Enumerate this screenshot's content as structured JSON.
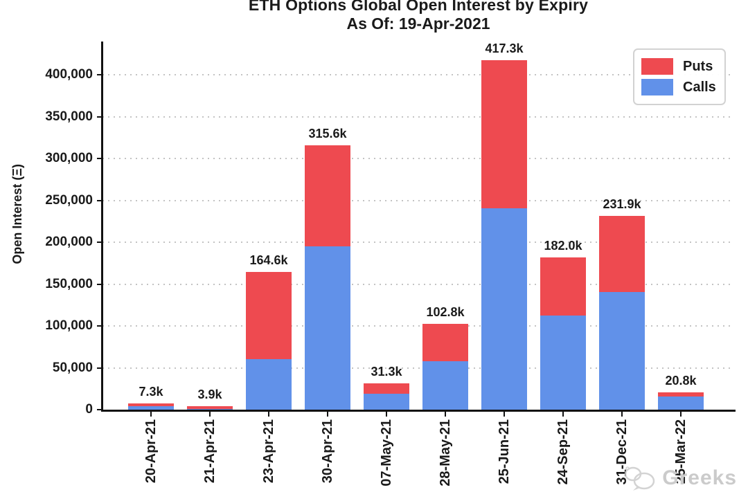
{
  "chart_data": {
    "type": "bar",
    "stacked": true,
    "title": "ETH Options Global Open Interest by Expiry",
    "subtitle": "As Of: 19-Apr-2021",
    "ylabel": "Open Interest (Ξ)",
    "xlabel": "",
    "categories": [
      "20-Apr-21",
      "21-Apr-21",
      "23-Apr-21",
      "30-Apr-21",
      "07-May-21",
      "28-May-21",
      "25-Jun-21",
      "24-Sep-21",
      "31-Dec-21",
      "25-Mar-22"
    ],
    "unit": "thousands of contracts",
    "series": [
      {
        "name": "Puts",
        "color": "#ee4a50",
        "stack_position": "top",
        "values_k": [
          2.8,
          2.7,
          104.6,
          120.6,
          12.3,
          44.6,
          176.4,
          69.4,
          91.2,
          4.9
        ]
      },
      {
        "name": "Calls",
        "color": "#6191e9",
        "stack_position": "bottom",
        "values_k": [
          4.5,
          1.2,
          60.0,
          195.0,
          19.0,
          58.2,
          240.9,
          112.6,
          140.7,
          15.9
        ]
      }
    ],
    "total_labels": [
      "7.3k",
      "3.9k",
      "164.6k",
      "315.6k",
      "31.3k",
      "102.8k",
      "417.3k",
      "182.0k",
      "231.9k",
      "20.8k"
    ],
    "yticks_values": [
      0,
      50000,
      100000,
      150000,
      200000,
      250000,
      300000,
      350000,
      400000
    ],
    "yticks_labels": [
      "0",
      "50,000",
      "100,000",
      "150,000",
      "200,000",
      "250,000",
      "300,000",
      "350,000",
      "400,000"
    ],
    "ylim": [
      0,
      440000
    ],
    "grid": "dotted horizontal gray",
    "legend_position": "upper right",
    "axis_color": "#111111",
    "gridline_color": "#c3c3c3"
  },
  "legend": {
    "items": [
      {
        "label": "Puts"
      },
      {
        "label": "Calls"
      }
    ]
  },
  "watermark": {
    "text": "Greeks",
    "icon": "speech-bubbles-logo"
  }
}
